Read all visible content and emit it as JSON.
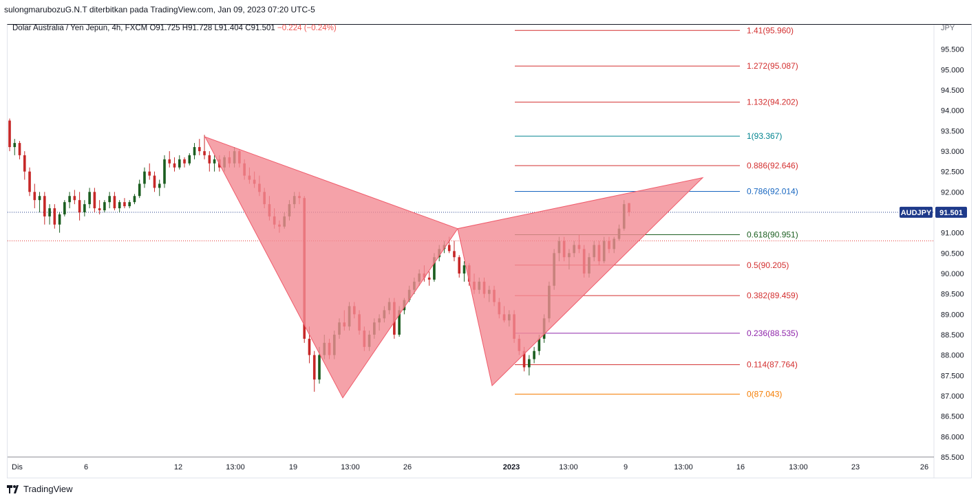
{
  "header": {
    "published": "sulongmarubozuG.N.T diterbitkan pada TradingView.com, Jan 09, 2023 07:20 UTC-5"
  },
  "legend": {
    "symbol": "Dolar Australia / Yen Jepun, 4h, FXCM",
    "o_label": "O",
    "o_value": "91.725",
    "h_label": "H",
    "h_value": "91.728",
    "l_label": "L",
    "l_value": "91.404",
    "c_label": "C",
    "c_value": "91.501",
    "change": "−0.224 (−0.24%)"
  },
  "footer": {
    "brand": "TradingView"
  },
  "colors": {
    "up": "#26a69a",
    "up_body": "#1b5e20",
    "down": "#c62828",
    "pattern_fill": "#f28b94",
    "pattern_stroke": "#ef5a6a",
    "price_badge": "#1e3a8a"
  },
  "chart_data": {
    "type": "candlestick",
    "symbol": "AUDJPY",
    "timeframe": "4h",
    "y_axis_unit": "JPY",
    "ylim": [
      85.5,
      96.1
    ],
    "y_ticks": [
      "95.500",
      "95.000",
      "94.500",
      "94.000",
      "93.500",
      "93.000",
      "92.500",
      "92.000",
      "91.500",
      "91.000",
      "90.500",
      "90.000",
      "89.500",
      "89.000",
      "88.500",
      "88.000",
      "87.500",
      "87.000",
      "86.500",
      "86.000",
      "85.500"
    ],
    "x_ticks": [
      "Dis",
      "6",
      "12",
      "13:00",
      "19",
      "13:00",
      "26",
      "2023",
      "13:00",
      "9",
      "13:00",
      "16",
      "13:00",
      "23",
      "26"
    ],
    "last_price": {
      "label": "AUDJPY",
      "value": "91.501"
    },
    "fibonacci": [
      {
        "level": "1.41",
        "price": "95.960",
        "color": "#d32f2f"
      },
      {
        "level": "1.272",
        "price": "95.087",
        "color": "#d32f2f"
      },
      {
        "level": "1.132",
        "price": "94.202",
        "color": "#d32f2f"
      },
      {
        "level": "1",
        "price": "93.367",
        "color": "#00838f"
      },
      {
        "level": "0.886",
        "price": "92.646",
        "color": "#d32f2f"
      },
      {
        "level": "0.786",
        "price": "92.014",
        "color": "#1565c0"
      },
      {
        "level": "0.618",
        "price": "90.951",
        "color": "#1b5e20"
      },
      {
        "level": "0.5",
        "price": "90.205",
        "color": "#d32f2f"
      },
      {
        "level": "0.382",
        "price": "89.459",
        "color": "#d32f2f"
      },
      {
        "level": "0.236",
        "price": "88.535",
        "color": "#8e24aa"
      },
      {
        "level": "0.114",
        "price": "87.764",
        "color": "#d32f2f"
      },
      {
        "level": "0",
        "price": "87.043",
        "color": "#f57c00"
      }
    ],
    "harmonic_pattern": {
      "points": [
        {
          "bar": 0.0,
          "price": 93.35
        },
        {
          "bar": 0.0,
          "price": 86.95
        },
        {
          "bar": 0.0,
          "price": 91.1
        },
        {
          "bar": 0.0,
          "price": 87.25
        },
        {
          "bar": 0.0,
          "price": 92.35
        }
      ]
    },
    "candles": [
      [
        93.75,
        93.8,
        93.0,
        93.1
      ],
      [
        93.1,
        93.3,
        92.9,
        93.2
      ],
      [
        93.2,
        93.25,
        92.8,
        92.9
      ],
      [
        92.9,
        93.0,
        92.3,
        92.5
      ],
      [
        92.5,
        92.6,
        91.9,
        92.0
      ],
      [
        92.0,
        92.2,
        91.6,
        91.8
      ],
      [
        91.8,
        92.0,
        91.5,
        91.9
      ],
      [
        91.9,
        92.0,
        91.2,
        91.4
      ],
      [
        91.4,
        91.7,
        91.2,
        91.6
      ],
      [
        91.6,
        91.7,
        91.1,
        91.2
      ],
      [
        91.2,
        91.5,
        91.0,
        91.45
      ],
      [
        91.45,
        91.8,
        91.4,
        91.75
      ],
      [
        91.75,
        92.0,
        91.6,
        91.9
      ],
      [
        91.9,
        92.05,
        91.7,
        91.8
      ],
      [
        91.8,
        92.0,
        91.3,
        91.5
      ],
      [
        91.5,
        91.8,
        91.4,
        91.7
      ],
      [
        91.7,
        92.1,
        91.6,
        92.0
      ],
      [
        92.0,
        92.1,
        91.5,
        91.6
      ],
      [
        91.6,
        91.8,
        91.45,
        91.55
      ],
      [
        91.55,
        91.8,
        91.5,
        91.75
      ],
      [
        91.75,
        92.0,
        91.6,
        91.9
      ],
      [
        91.9,
        92.0,
        91.55,
        91.6
      ],
      [
        91.6,
        91.8,
        91.5,
        91.75
      ],
      [
        91.75,
        91.85,
        91.6,
        91.65
      ],
      [
        91.65,
        91.8,
        91.6,
        91.75
      ],
      [
        91.75,
        91.95,
        91.7,
        91.9
      ],
      [
        91.9,
        92.3,
        91.85,
        92.2
      ],
      [
        92.2,
        92.6,
        92.1,
        92.5
      ],
      [
        92.5,
        92.7,
        92.3,
        92.4
      ],
      [
        92.4,
        92.5,
        92.0,
        92.1
      ],
      [
        92.1,
        92.3,
        91.9,
        92.2
      ],
      [
        92.2,
        92.9,
        92.1,
        92.8
      ],
      [
        92.8,
        93.0,
        92.6,
        92.7
      ],
      [
        92.7,
        92.85,
        92.5,
        92.6
      ],
      [
        92.6,
        92.9,
        92.55,
        92.8
      ],
      [
        92.8,
        92.85,
        92.6,
        92.7
      ],
      [
        92.7,
        92.95,
        92.65,
        92.9
      ],
      [
        92.9,
        93.2,
        92.8,
        93.1
      ],
      [
        93.1,
        93.3,
        92.9,
        93.0
      ],
      [
        93.0,
        93.4,
        92.8,
        92.9
      ],
      [
        92.9,
        93.0,
        92.5,
        92.7
      ],
      [
        92.7,
        92.9,
        92.5,
        92.8
      ],
      [
        92.8,
        92.9,
        92.5,
        92.6
      ],
      [
        92.6,
        92.9,
        92.5,
        92.85
      ],
      [
        92.85,
        93.0,
        92.6,
        92.7
      ],
      [
        92.7,
        93.1,
        92.6,
        93.0
      ],
      [
        93.0,
        93.05,
        92.6,
        92.7
      ],
      [
        92.7,
        92.8,
        92.3,
        92.4
      ],
      [
        92.4,
        92.6,
        92.2,
        92.3
      ],
      [
        92.3,
        92.5,
        92.1,
        92.2
      ],
      [
        92.2,
        92.4,
        91.9,
        92.0
      ],
      [
        92.0,
        92.1,
        91.6,
        91.7
      ],
      [
        91.7,
        91.9,
        91.3,
        91.4
      ],
      [
        91.4,
        91.6,
        91.1,
        91.2
      ],
      [
        91.2,
        91.3,
        91.0,
        91.15
      ],
      [
        91.15,
        91.5,
        91.1,
        91.4
      ],
      [
        91.4,
        91.8,
        91.3,
        91.7
      ],
      [
        91.7,
        92.0,
        91.6,
        91.9
      ],
      [
        91.9,
        92.0,
        91.7,
        91.85
      ],
      [
        91.85,
        91.9,
        88.3,
        88.4
      ],
      [
        88.4,
        88.7,
        87.8,
        88.0
      ],
      [
        88.0,
        88.1,
        87.1,
        87.4
      ],
      [
        87.4,
        88.2,
        87.3,
        88.0
      ],
      [
        88.0,
        88.5,
        87.9,
        88.3
      ],
      [
        88.3,
        88.4,
        87.9,
        88.0
      ],
      [
        88.0,
        88.6,
        87.9,
        88.5
      ],
      [
        88.5,
        88.9,
        88.4,
        88.8
      ],
      [
        88.8,
        89.1,
        88.6,
        88.7
      ],
      [
        88.7,
        89.3,
        88.6,
        89.2
      ],
      [
        89.2,
        89.3,
        88.9,
        89.0
      ],
      [
        89.0,
        89.1,
        88.5,
        88.6
      ],
      [
        88.6,
        88.7,
        88.1,
        88.2
      ],
      [
        88.2,
        88.6,
        88.1,
        88.5
      ],
      [
        88.5,
        88.9,
        88.4,
        88.8
      ],
      [
        88.8,
        89.0,
        88.6,
        88.9
      ],
      [
        88.9,
        89.2,
        88.8,
        89.1
      ],
      [
        89.1,
        89.4,
        89.0,
        89.3
      ],
      [
        89.3,
        89.4,
        88.4,
        88.5
      ],
      [
        88.5,
        89.2,
        88.45,
        89.1
      ],
      [
        89.1,
        89.4,
        89.0,
        89.35
      ],
      [
        89.35,
        89.7,
        89.3,
        89.6
      ],
      [
        89.6,
        89.9,
        89.5,
        89.8
      ],
      [
        89.8,
        90.1,
        89.7,
        90.0
      ],
      [
        90.0,
        90.2,
        89.8,
        89.9
      ],
      [
        89.9,
        90.05,
        89.7,
        89.85
      ],
      [
        89.85,
        90.5,
        89.8,
        90.4
      ],
      [
        90.4,
        90.7,
        90.3,
        90.6
      ],
      [
        90.6,
        90.8,
        90.5,
        90.7
      ],
      [
        90.7,
        90.9,
        90.5,
        90.55
      ],
      [
        90.55,
        90.8,
        90.3,
        90.4
      ],
      [
        90.4,
        90.45,
        89.9,
        90.0
      ],
      [
        90.0,
        90.3,
        89.8,
        90.2
      ],
      [
        90.2,
        90.25,
        89.7,
        89.8
      ],
      [
        89.8,
        90.0,
        89.5,
        89.6
      ],
      [
        89.6,
        89.9,
        89.5,
        89.8
      ],
      [
        89.8,
        89.9,
        89.4,
        89.5
      ],
      [
        89.5,
        89.7,
        89.3,
        89.6
      ],
      [
        89.6,
        89.7,
        89.2,
        89.3
      ],
      [
        89.3,
        89.4,
        88.9,
        89.0
      ],
      [
        89.0,
        89.2,
        88.8,
        88.85
      ],
      [
        88.85,
        89.1,
        88.7,
        89.0
      ],
      [
        89.0,
        89.1,
        88.3,
        88.4
      ],
      [
        88.4,
        88.5,
        88.0,
        88.1
      ],
      [
        88.1,
        88.2,
        87.6,
        87.7
      ],
      [
        87.7,
        88.0,
        87.5,
        87.9
      ],
      [
        87.9,
        88.2,
        87.8,
        88.1
      ],
      [
        88.1,
        88.5,
        88.0,
        88.4
      ],
      [
        88.4,
        89.0,
        88.3,
        88.9
      ],
      [
        88.9,
        89.8,
        88.8,
        89.7
      ],
      [
        89.7,
        90.6,
        89.6,
        90.5
      ],
      [
        90.5,
        90.9,
        90.3,
        90.8
      ],
      [
        90.8,
        90.9,
        90.3,
        90.4
      ],
      [
        90.4,
        90.6,
        90.1,
        90.5
      ],
      [
        90.5,
        90.8,
        90.4,
        90.7
      ],
      [
        90.7,
        90.95,
        90.5,
        90.6
      ],
      [
        90.6,
        90.7,
        89.9,
        90.0
      ],
      [
        90.0,
        90.5,
        89.9,
        90.4
      ],
      [
        90.4,
        90.8,
        90.3,
        90.7
      ],
      [
        90.7,
        90.8,
        90.2,
        90.3
      ],
      [
        90.3,
        90.9,
        90.25,
        90.8
      ],
      [
        90.8,
        90.9,
        90.5,
        90.6
      ],
      [
        90.6,
        90.9,
        90.5,
        90.85
      ],
      [
        90.85,
        91.2,
        90.8,
        91.1
      ],
      [
        91.1,
        91.8,
        91.05,
        91.7
      ],
      [
        91.725,
        91.728,
        91.404,
        91.501
      ]
    ]
  }
}
